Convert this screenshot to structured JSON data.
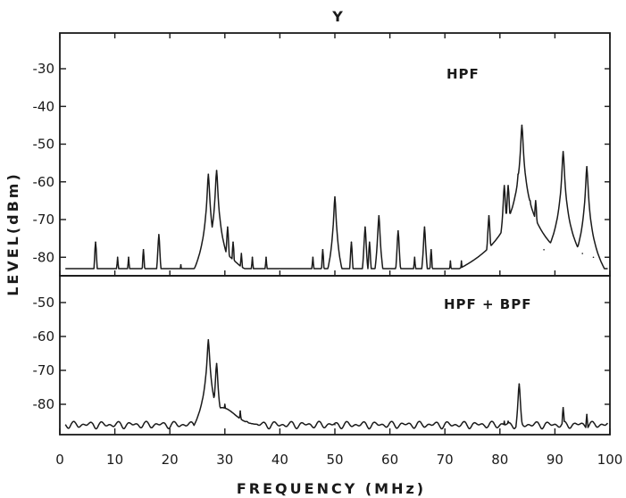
{
  "chart_data": {
    "type": "line",
    "title": "Y",
    "xlabel": "FREQUENCY (MHz)",
    "ylabel": "LEVEL(dBm)",
    "xlim": [
      0,
      100
    ],
    "xticks": [
      0,
      10,
      20,
      30,
      40,
      50,
      60,
      70,
      80,
      90,
      100
    ],
    "grid": false,
    "panels": [
      {
        "label": "HPF",
        "ylim": [
          -88,
          -20
        ],
        "yticks": [
          -30,
          -40,
          -50,
          -60,
          -70,
          -80
        ],
        "baseline": -84,
        "peaks": [
          {
            "x": 6.5,
            "y": -76
          },
          {
            "x": 10.5,
            "y": -80
          },
          {
            "x": 12.5,
            "y": -80
          },
          {
            "x": 15.2,
            "y": -78
          },
          {
            "x": 18.0,
            "y": -74
          },
          {
            "x": 22.0,
            "y": -82
          },
          {
            "x": 27.0,
            "y": -58
          },
          {
            "x": 28.5,
            "y": -57
          },
          {
            "x": 30.5,
            "y": -72
          },
          {
            "x": 31.5,
            "y": -76
          },
          {
            "x": 33.0,
            "y": -79
          },
          {
            "x": 35.0,
            "y": -80
          },
          {
            "x": 37.5,
            "y": -80
          },
          {
            "x": 46.0,
            "y": -80
          },
          {
            "x": 47.8,
            "y": -78
          },
          {
            "x": 50.0,
            "y": -64
          },
          {
            "x": 53.0,
            "y": -76
          },
          {
            "x": 55.5,
            "y": -72
          },
          {
            "x": 56.3,
            "y": -76
          },
          {
            "x": 58.0,
            "y": -69
          },
          {
            "x": 61.5,
            "y": -73
          },
          {
            "x": 64.5,
            "y": -80
          },
          {
            "x": 66.3,
            "y": -72
          },
          {
            "x": 67.5,
            "y": -78
          },
          {
            "x": 71.0,
            "y": -81
          },
          {
            "x": 73.0,
            "y": -81
          },
          {
            "x": 78.0,
            "y": -69
          },
          {
            "x": 80.8,
            "y": -61
          },
          {
            "x": 81.5,
            "y": -61
          },
          {
            "x": 83.3,
            "y": -58
          },
          {
            "x": 84.0,
            "y": -45
          },
          {
            "x": 85.5,
            "y": -65
          },
          {
            "x": 86.5,
            "y": -65
          },
          {
            "x": 88.0,
            "y": -78
          },
          {
            "x": 91.5,
            "y": -52
          },
          {
            "x": 95.0,
            "y": -79
          },
          {
            "x": 95.8,
            "y": -56
          },
          {
            "x": 97.0,
            "y": -80
          }
        ]
      },
      {
        "label": "HPF + BPF",
        "ylim": [
          -90,
          -38
        ],
        "yticks": [
          -50,
          -60,
          -70,
          -80
        ],
        "baseline": -86,
        "peaks": [
          {
            "x": 27.0,
            "y": -61
          },
          {
            "x": 28.5,
            "y": -68
          },
          {
            "x": 30.0,
            "y": -80
          },
          {
            "x": 32.8,
            "y": -82
          },
          {
            "x": 50.0,
            "y": -86
          },
          {
            "x": 80.8,
            "y": -85
          },
          {
            "x": 81.5,
            "y": -85
          },
          {
            "x": 83.5,
            "y": -74
          },
          {
            "x": 91.5,
            "y": -81
          },
          {
            "x": 95.8,
            "y": -83
          }
        ]
      }
    ]
  }
}
